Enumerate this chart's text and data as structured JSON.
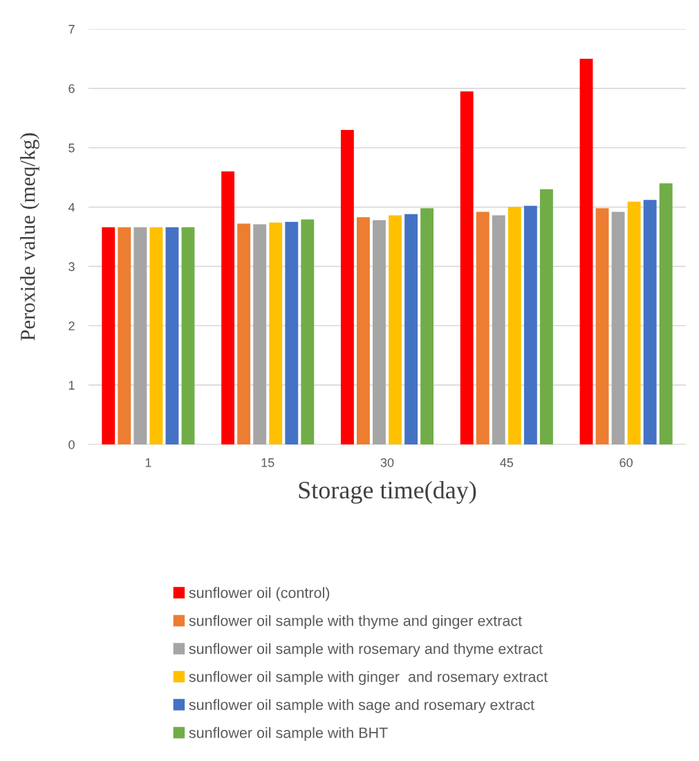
{
  "chart_data": {
    "type": "bar",
    "xlabel": "Storage time(day)",
    "ylabel": "Peroxide value (meq/kg)",
    "categories": [
      "1",
      "15",
      "30",
      "45",
      "60"
    ],
    "series": [
      {
        "name": "sunflower oil (control)",
        "color": "#ff0000",
        "values": [
          3.66,
          4.6,
          5.3,
          5.95,
          6.5
        ]
      },
      {
        "name": "sunflower oil sample with thyme and ginger extract",
        "color": "#ed7d31",
        "values": [
          3.66,
          3.72,
          3.83,
          3.92,
          3.98
        ]
      },
      {
        "name": "sunflower oil sample with rosemary and thyme extract",
        "color": "#a5a5a5",
        "values": [
          3.66,
          3.71,
          3.78,
          3.86,
          3.92
        ]
      },
      {
        "name": "sunflower oil sample with ginger  and rosemary extract",
        "color": "#ffc000",
        "values": [
          3.66,
          3.74,
          3.86,
          4.0,
          4.09
        ]
      },
      {
        "name": "sunflower oil sample with sage and rosemary extract",
        "color": "#4472c4",
        "values": [
          3.66,
          3.75,
          3.88,
          4.02,
          4.12
        ]
      },
      {
        "name": "sunflower oil sample with BHT",
        "color": "#70ad47",
        "values": [
          3.66,
          3.79,
          3.98,
          4.3,
          4.4
        ]
      }
    ],
    "ylim": [
      0,
      7
    ],
    "yticks": [
      0,
      1,
      2,
      3,
      4,
      5,
      6,
      7
    ],
    "grid": "y",
    "legend": "bottom"
  }
}
